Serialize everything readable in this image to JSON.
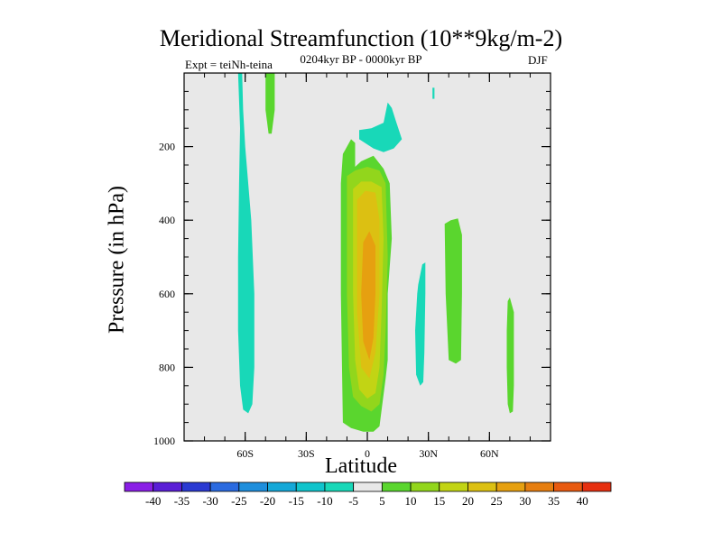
{
  "chart_data": {
    "type": "filled-contour",
    "title": "Meridional Streamfunction (10**9kg/m-2)",
    "subtitle": "0204kyr BP - 0000kyr BP",
    "left_label": "Expt = teiNh-teina",
    "right_label": "DJF",
    "xlabel": "Latitude",
    "ylabel": "Pressure (in hPa)",
    "xlim": [
      -90,
      90
    ],
    "ylim": [
      1000,
      0
    ],
    "x_ticks": [
      {
        "value": -60,
        "label": "60S"
      },
      {
        "value": -30,
        "label": "30S"
      },
      {
        "value": 0,
        "label": "0"
      },
      {
        "value": 30,
        "label": "30N"
      },
      {
        "value": 60,
        "label": "60N"
      }
    ],
    "y_ticks": [
      {
        "value": 200,
        "label": "200"
      },
      {
        "value": 400,
        "label": "400"
      },
      {
        "value": 600,
        "label": "600"
      },
      {
        "value": 800,
        "label": "800"
      },
      {
        "value": 1000,
        "label": "1000"
      }
    ],
    "background_color": "#e8e8e8",
    "colorbar": {
      "labels": [
        "-40",
        "-35",
        "-30",
        "-25",
        "-20",
        "-15",
        "-10",
        "-5",
        "5",
        "10",
        "15",
        "20",
        "25",
        "30",
        "35",
        "40"
      ],
      "colors": [
        "#8a1ee6",
        "#5a1ed6",
        "#2a3ad2",
        "#2a6ae0",
        "#1e8edc",
        "#14a8d8",
        "#10c4cc",
        "#18d8b8",
        "#e8e8e8",
        "#5ad62e",
        "#92d61c",
        "#c2d414",
        "#dcc012",
        "#e6a010",
        "#e67e10",
        "#e85a10",
        "#e63010"
      ]
    },
    "regions": [
      {
        "name": "neg-band-60s",
        "level": -7.5,
        "color": "#18d8b8",
        "points": [
          [
            -63.5,
            0
          ],
          [
            -61.5,
            0
          ],
          [
            -61,
            100
          ],
          [
            -60,
            200
          ],
          [
            -57,
            400
          ],
          [
            -55.5,
            600
          ],
          [
            -55.5,
            800
          ],
          [
            -56.5,
            900
          ],
          [
            -58.5,
            925
          ],
          [
            -61,
            915
          ],
          [
            -62.5,
            850
          ],
          [
            -63.5,
            700
          ],
          [
            -63.5,
            500
          ],
          [
            -63,
            300
          ],
          [
            -62.5,
            150
          ]
        ]
      },
      {
        "name": "pos-strip-50s",
        "level": 7.5,
        "color": "#5ad62e",
        "points": [
          [
            -50,
            0
          ],
          [
            -45.5,
            0
          ],
          [
            -45.5,
            100
          ],
          [
            -47,
            165
          ],
          [
            -48.5,
            165
          ],
          [
            -50,
            100
          ]
        ]
      },
      {
        "name": "neg-patch-upper-eq",
        "level": -7.5,
        "color": "#18d8b8",
        "points": [
          [
            -4,
            155
          ],
          [
            2,
            150
          ],
          [
            8,
            135
          ],
          [
            10,
            80
          ],
          [
            12,
            95
          ],
          [
            14,
            130
          ],
          [
            17,
            180
          ],
          [
            13,
            205
          ],
          [
            8,
            215
          ],
          [
            3,
            205
          ],
          [
            -4,
            180
          ]
        ]
      },
      {
        "name": "neg-dot-33n",
        "level": -7.5,
        "color": "#18d8b8",
        "points": [
          [
            32,
            40
          ],
          [
            33,
            40
          ],
          [
            33,
            70
          ],
          [
            32,
            70
          ]
        ]
      },
      {
        "name": "pos-main-cell",
        "level": 7.5,
        "color": "#5ad62e",
        "points": [
          [
            -12,
            220
          ],
          [
            -8,
            180
          ],
          [
            -6,
            190
          ],
          [
            -6,
            255
          ],
          [
            -3,
            240
          ],
          [
            3,
            225
          ],
          [
            8,
            260
          ],
          [
            11,
            300
          ],
          [
            12,
            450
          ],
          [
            10,
            600
          ],
          [
            10,
            780
          ],
          [
            9,
            830
          ],
          [
            6,
            960
          ],
          [
            3,
            975
          ],
          [
            -2,
            975
          ],
          [
            -8,
            965
          ],
          [
            -12,
            950
          ],
          [
            -13,
            600
          ],
          [
            -13,
            300
          ]
        ]
      },
      {
        "name": "pos-main-cell-10",
        "level": 12.5,
        "color": "#92d61c",
        "points": [
          [
            -10,
            280
          ],
          [
            -6,
            265
          ],
          [
            0,
            255
          ],
          [
            6,
            265
          ],
          [
            9,
            300
          ],
          [
            10,
            500
          ],
          [
            9,
            700
          ],
          [
            8,
            820
          ],
          [
            6,
            900
          ],
          [
            2,
            920
          ],
          [
            -3,
            905
          ],
          [
            -7,
            880
          ],
          [
            -9,
            800
          ],
          [
            -10,
            600
          ],
          [
            -10,
            400
          ]
        ]
      },
      {
        "name": "pos-main-cell-15",
        "level": 17.5,
        "color": "#c2d414",
        "points": [
          [
            -7,
            315
          ],
          [
            -3,
            295
          ],
          [
            2,
            295
          ],
          [
            7,
            310
          ],
          [
            8,
            450
          ],
          [
            7,
            650
          ],
          [
            6,
            800
          ],
          [
            4,
            870
          ],
          [
            0,
            885
          ],
          [
            -4,
            860
          ],
          [
            -6,
            780
          ],
          [
            -7,
            600
          ],
          [
            -7,
            450
          ]
        ]
      },
      {
        "name": "pos-main-cell-20",
        "level": 22.5,
        "color": "#dcc012",
        "points": [
          [
            -5,
            345
          ],
          [
            -1,
            320
          ],
          [
            4,
            325
          ],
          [
            6,
            400
          ],
          [
            6,
            600
          ],
          [
            4,
            760
          ],
          [
            1,
            830
          ],
          [
            -3,
            800
          ],
          [
            -5,
            650
          ],
          [
            -5,
            450
          ]
        ]
      },
      {
        "name": "pos-main-cell-25",
        "level": 27.5,
        "color": "#e6a010",
        "points": [
          [
            -2,
            460
          ],
          [
            1,
            430
          ],
          [
            4,
            470
          ],
          [
            4,
            600
          ],
          [
            3,
            720
          ],
          [
            1,
            780
          ],
          [
            -2,
            730
          ],
          [
            -3,
            600
          ]
        ]
      },
      {
        "name": "neg-band-25n",
        "level": -7.5,
        "color": "#18d8b8",
        "points": [
          [
            25,
            575
          ],
          [
            27,
            520
          ],
          [
            28.5,
            515
          ],
          [
            28.5,
            600
          ],
          [
            28,
            760
          ],
          [
            27.5,
            840
          ],
          [
            26,
            850
          ],
          [
            24,
            820
          ],
          [
            23.5,
            700
          ],
          [
            24.5,
            600
          ]
        ]
      },
      {
        "name": "pos-band-43n",
        "level": 7.5,
        "color": "#5ad62e",
        "points": [
          [
            38,
            410
          ],
          [
            41,
            400
          ],
          [
            44.5,
            395
          ],
          [
            46.5,
            440
          ],
          [
            46.5,
            600
          ],
          [
            46,
            780
          ],
          [
            43.5,
            790
          ],
          [
            40,
            780
          ],
          [
            38.5,
            600
          ]
        ]
      },
      {
        "name": "pos-band-71n",
        "level": 7.5,
        "color": "#5ad62e",
        "points": [
          [
            69,
            620
          ],
          [
            70,
            610
          ],
          [
            72,
            650
          ],
          [
            72,
            850
          ],
          [
            71.5,
            920
          ],
          [
            70,
            925
          ],
          [
            69,
            900
          ],
          [
            68.5,
            800
          ],
          [
            68.5,
            700
          ]
        ]
      }
    ]
  }
}
